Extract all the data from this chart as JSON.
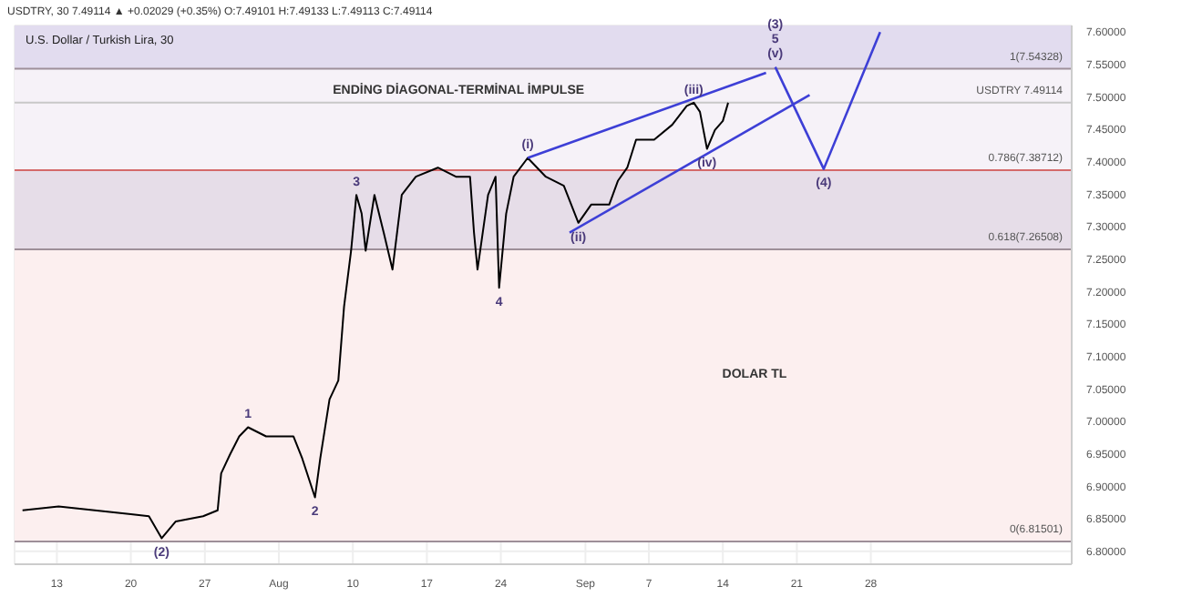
{
  "chart_data": {
    "type": "line",
    "title": "U.S. Dollar / Turkish Lira, 30",
    "subtitle": "USDTRY, 30  7.49114 ▲ +0.02029 (+0.35%) O:7.49101 H:7.49133 L:7.49113 C:7.49114",
    "xlim": [
      "--07-09",
      "--10-17"
    ],
    "xticks": [
      {
        "value": "--07-13",
        "label": "13"
      },
      {
        "value": "--07-20",
        "label": "20"
      },
      {
        "value": "--07-27",
        "label": "27"
      },
      {
        "value": "--08-03",
        "label": "Aug"
      },
      {
        "value": "--08-10",
        "label": "10"
      },
      {
        "value": "--08-17",
        "label": "17"
      },
      {
        "value": "--08-24",
        "label": "24"
      },
      {
        "value": "--09-01",
        "label": "Sep"
      },
      {
        "value": "--09-07",
        "label": "7"
      },
      {
        "value": "--09-14",
        "label": "14"
      },
      {
        "value": "--09-21",
        "label": "21"
      },
      {
        "value": "--09-28",
        "label": "28"
      }
    ],
    "ylim": [
      6.78,
      7.61
    ],
    "yticks": [
      {
        "value": 6.8,
        "label": "6.80000"
      },
      {
        "value": 6.85,
        "label": "6.85000"
      },
      {
        "value": 6.9,
        "label": "6.90000"
      },
      {
        "value": 6.95,
        "label": "6.95000"
      },
      {
        "value": 7.0,
        "label": "7.00000"
      },
      {
        "value": 7.05,
        "label": "7.05000"
      },
      {
        "value": 7.1,
        "label": "7.10000"
      },
      {
        "value": 7.15,
        "label": "7.15000"
      },
      {
        "value": 7.2,
        "label": "7.20000"
      },
      {
        "value": 7.25,
        "label": "7.25000"
      },
      {
        "value": 7.3,
        "label": "7.30000"
      },
      {
        "value": 7.35,
        "label": "7.35000"
      },
      {
        "value": 7.4,
        "label": "7.40000"
      },
      {
        "value": 7.45,
        "label": "7.45000"
      },
      {
        "value": 7.5,
        "label": "7.50000"
      },
      {
        "value": 7.55,
        "label": "7.55000"
      },
      {
        "value": 7.6,
        "label": "7.60000"
      }
    ],
    "grid": true,
    "marker": "none",
    "line_style": "solid",
    "series": [
      {
        "color": "#000000",
        "x": [
          "--07-09T18:00",
          "--07-13T04:00",
          "--07-16T14:00",
          "--07-20T00:00",
          "--07-21T17:00",
          "--07-22T22:00",
          "--07-24T06:00",
          "--07-26T20:00",
          "--07-28T05:00",
          "--07-28T13:00",
          "--07-29T09:00",
          "--07-30T06:00",
          "--07-31T02:00",
          "--08-01T19:00",
          "--08-04T09:00",
          "--08-05T05:00",
          "--08-06T10:00",
          "--08-06T22:00",
          "--08-07T19:00",
          "--08-08T15:00",
          "--08-09T04:00",
          "--08-09T20:00",
          "--08-10T08:00",
          "--08-10T20:00",
          "--08-11T05:00",
          "--08-12T01:00",
          "--08-12T22:00",
          "--08-13T18:00",
          "--08-14T15:00",
          "--08-15T23:00",
          "--08-18T01:00",
          "--08-19T18:00",
          "--08-21T02:00",
          "--08-21T11:00",
          "--08-21T19:00",
          "--08-22T19:00",
          "--08-23T12:00",
          "--08-23T20:00",
          "--08-24T12:00",
          "--08-25T05:00",
          "--08-26T13:00",
          "--08-28T06:00",
          "--08-29T23:00",
          "--08-31T08:00",
          "--09-01T13:00",
          "--09-03T06:00",
          "--09-04T02:00",
          "--09-04T23:00",
          "--09-05T19:00",
          "--09-07T12:00",
          "--09-09T05:00",
          "--09-10T14:00",
          "--09-11T06:00",
          "--09-11T20:00",
          "--09-12T12:00",
          "--09-13T06:00",
          "--09-14T00:00",
          "--09-14T12:00"
        ],
        "values": [
          6.863,
          6.869,
          6.863,
          6.857,
          6.854,
          6.82,
          6.846,
          6.854,
          6.863,
          6.92,
          6.949,
          6.977,
          6.991,
          6.977,
          6.977,
          6.943,
          6.883,
          6.943,
          7.034,
          7.063,
          7.177,
          7.263,
          7.349,
          7.32,
          7.263,
          7.349,
          7.291,
          7.234,
          7.349,
          7.377,
          7.391,
          7.377,
          7.377,
          7.291,
          7.234,
          7.349,
          7.377,
          7.206,
          7.32,
          7.377,
          7.406,
          7.377,
          7.363,
          7.306,
          7.334,
          7.334,
          7.371,
          7.391,
          7.434,
          7.434,
          7.457,
          7.486,
          7.491,
          7.477,
          7.42,
          7.449,
          7.463,
          7.491
        ]
      },
      {
        "color": "#3d3fd6",
        "x": [
          "--08-26T13:00",
          "--09-18T02:00"
        ],
        "values": [
          7.406,
          7.537
        ]
      },
      {
        "color": "#3d3fd6",
        "x": [
          "--08-30T12:00",
          "--09-22T05:00"
        ],
        "values": [
          7.291,
          7.503
        ]
      },
      {
        "color": "#3d3fd6",
        "x": [
          "--09-18T23:00",
          "--09-23T13:00",
          "--09-28T21:00"
        ],
        "values": [
          7.546,
          7.389,
          7.6
        ]
      }
    ],
    "bands": [
      {
        "axis": "y",
        "from": 7.54328,
        "to": 7.61,
        "color": "#e2dcef"
      },
      {
        "axis": "y",
        "from": 7.38712,
        "to": 7.54328,
        "color": "#f6f2f8"
      },
      {
        "axis": "y",
        "from": 7.26508,
        "to": 7.38712,
        "color": "#e6dde8"
      },
      {
        "axis": "y",
        "from": 6.81501,
        "to": 7.26508,
        "color": "#fcefef"
      }
    ],
    "ref_lines": [
      {
        "axis": "y",
        "value": 7.54328,
        "label": "1(7.54328)",
        "color": "#9e8f99"
      },
      {
        "axis": "y",
        "value": 7.38712,
        "label": "0.786(7.38712)",
        "color": "#d46a6a"
      },
      {
        "axis": "y",
        "value": 7.26508,
        "label": "0.618(7.26508)",
        "color": "#9e8f99"
      },
      {
        "axis": "y",
        "value": 6.81501,
        "label": "0(6.81501)",
        "color": "#9e8f99"
      },
      {
        "axis": "y",
        "value": 7.49114,
        "label": "USDTRY 7.49114",
        "color": "#c8c8c8"
      }
    ],
    "annotations": [
      {
        "text": "(2)",
        "x": "--07-22T22:00",
        "y": 6.82
      },
      {
        "text": "1",
        "x": "--07-31T02:00",
        "y": 6.991
      },
      {
        "text": "2",
        "x": "--08-06T10:00",
        "y": 6.883
      },
      {
        "text": "3",
        "x": "--08-10T08:00",
        "y": 7.349
      },
      {
        "text": "4",
        "x": "--08-23T20:00",
        "y": 7.206
      },
      {
        "text": "(i)",
        "x": "--08-26T13:00",
        "y": 7.406
      },
      {
        "text": "(ii)",
        "x": "--08-31T08:00",
        "y": 7.306
      },
      {
        "text": "(iii)",
        "x": "--09-11T06:00",
        "y": 7.491
      },
      {
        "text": "(iv)",
        "x": "--09-12T12:00",
        "y": 7.42
      },
      {
        "text": "(v)",
        "x": "--09-18T23:00",
        "y": 7.546
      },
      {
        "text": "5",
        "x": "--09-18T23:00",
        "y": 7.546
      },
      {
        "text": "(3)",
        "x": "--09-18T23:00",
        "y": 7.546
      },
      {
        "text": "(4)",
        "x": "--09-23T13:00",
        "y": 7.389
      },
      "ENDİNG DİAGONAL-TERMİNAL İMPULSE",
      "DOLAR TL"
    ]
  }
}
